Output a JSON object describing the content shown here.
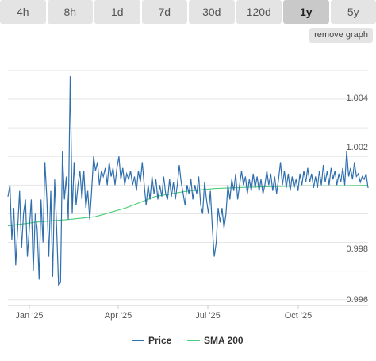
{
  "toolbar": {
    "ranges": [
      "4h",
      "8h",
      "1d",
      "7d",
      "30d",
      "120d",
      "1y",
      "5y"
    ],
    "active_range": "1y",
    "remove_graph_label": "remove graph"
  },
  "colors": {
    "price": "#2f6fae",
    "sma": "#4fcf7a",
    "grid": "#e6e6e6",
    "axis": "#cccccc"
  },
  "chart_data": {
    "type": "line",
    "title": "",
    "xlabel": "",
    "ylabel": "",
    "x_ticks": [
      "Jan '25",
      "Apr '25",
      "Jul '25",
      "Oct '25"
    ],
    "y_ticks": [
      "1.004",
      "1.002",
      "0.998",
      "0.996"
    ],
    "ylim": [
      0.9958,
      1.0048
    ],
    "x_range": [
      "2024-12-15",
      "2025-12-20"
    ],
    "grid": true,
    "legend_position": "bottom-center",
    "series": [
      {
        "name": "Price",
        "color": "#2f6fae",
        "points": [
          [
            "2024-12-15",
            0.9996
          ],
          [
            "2024-12-17",
            1.0
          ],
          [
            "2024-12-19",
            0.9981
          ],
          [
            "2024-12-21",
            0.9992
          ],
          [
            "2024-12-23",
            0.9972
          ],
          [
            "2024-12-25",
            0.9985
          ],
          [
            "2024-12-27",
            0.9998
          ],
          [
            "2024-12-29",
            0.9978
          ],
          [
            "2024-12-31",
            0.999
          ],
          [
            "2025-01-02",
            0.9995
          ],
          [
            "2025-01-04",
            0.9975
          ],
          [
            "2025-01-06",
            0.9985
          ],
          [
            "2025-01-08",
            0.9995
          ],
          [
            "2025-01-10",
            0.997
          ],
          [
            "2025-01-12",
            0.999
          ],
          [
            "2025-01-14",
            0.9985
          ],
          [
            "2025-01-16",
            0.9967
          ],
          [
            "2025-01-18",
            0.9995
          ],
          [
            "2025-01-20",
            0.998
          ],
          [
            "2025-01-22",
            1.0008
          ],
          [
            "2025-01-24",
            0.9995
          ],
          [
            "2025-01-26",
            0.9975
          ],
          [
            "2025-01-28",
            0.9998
          ],
          [
            "2025-01-30",
            0.9968
          ],
          [
            "2025-02-01",
            1.0002
          ],
          [
            "2025-02-03",
            0.9985
          ],
          [
            "2025-02-05",
            0.9965
          ],
          [
            "2025-02-07",
            0.9966
          ],
          [
            "2025-02-09",
            1.0012
          ],
          [
            "2025-02-11",
            0.9995
          ],
          [
            "2025-02-13",
            1.0003
          ],
          [
            "2025-02-15",
            0.9988
          ],
          [
            "2025-02-17",
            1.0038
          ],
          [
            "2025-02-19",
            0.999
          ],
          [
            "2025-02-21",
            1.0008
          ],
          [
            "2025-02-23",
            0.9993
          ],
          [
            "2025-02-25",
            1.0
          ],
          [
            "2025-02-27",
            1.0005
          ],
          [
            "2025-03-01",
            0.9995
          ],
          [
            "2025-03-03",
            1.0005
          ],
          [
            "2025-03-05",
            0.9992
          ],
          [
            "2025-03-07",
            0.9998
          ],
          [
            "2025-03-09",
            0.9988
          ],
          [
            "2025-03-11",
            0.9998
          ],
          [
            "2025-03-13",
            1.001
          ],
          [
            "2025-03-15",
            1.0005
          ],
          [
            "2025-03-17",
            1.0008
          ],
          [
            "2025-03-19",
            1.0
          ],
          [
            "2025-03-21",
            1.0005
          ],
          [
            "2025-03-23",
            1.0003
          ],
          [
            "2025-03-25",
            1.0006
          ],
          [
            "2025-03-27",
            1.0
          ],
          [
            "2025-03-29",
            1.0008
          ],
          [
            "2025-03-31",
            1.0003
          ],
          [
            "2025-04-02",
            1.0006
          ],
          [
            "2025-04-04",
            1.0
          ],
          [
            "2025-04-06",
            1.0006
          ],
          [
            "2025-04-08",
            1.001
          ],
          [
            "2025-04-10",
            1.0002
          ],
          [
            "2025-04-12",
            1.0006
          ],
          [
            "2025-04-14",
            1.0
          ],
          [
            "2025-04-16",
            1.0004
          ],
          [
            "2025-04-18",
            1.0002
          ],
          [
            "2025-04-20",
            1.0005
          ],
          [
            "2025-04-22",
            1.0
          ],
          [
            "2025-04-24",
            1.0003
          ],
          [
            "2025-04-26",
            0.9998
          ],
          [
            "2025-04-28",
            1.0005
          ],
          [
            "2025-04-30",
            1.0001
          ],
          [
            "2025-05-02",
            1.0008
          ],
          [
            "2025-05-04",
            1.0
          ],
          [
            "2025-05-06",
            0.9993
          ],
          [
            "2025-05-08",
            1.0
          ],
          [
            "2025-05-10",
            0.9995
          ],
          [
            "2025-05-12",
            1.0003
          ],
          [
            "2025-05-14",
            0.9997
          ],
          [
            "2025-05-16",
            1.0002
          ],
          [
            "2025-05-18",
            0.9995
          ],
          [
            "2025-05-20",
            1.0
          ],
          [
            "2025-05-22",
            0.9996
          ],
          [
            "2025-05-24",
            1.0003
          ],
          [
            "2025-05-26",
            0.9997
          ],
          [
            "2025-05-28",
            0.9995
          ],
          [
            "2025-05-30",
            1.0002
          ],
          [
            "2025-06-01",
            0.9996
          ],
          [
            "2025-06-03",
            1.0001
          ],
          [
            "2025-06-05",
            0.9995
          ],
          [
            "2025-06-07",
            1.0
          ],
          [
            "2025-06-09",
            1.0007
          ],
          [
            "2025-06-11",
            1.0001
          ],
          [
            "2025-06-13",
            0.9997
          ],
          [
            "2025-06-15",
            0.9993
          ],
          [
            "2025-06-17",
            1.0
          ],
          [
            "2025-06-19",
            0.9997
          ],
          [
            "2025-06-21",
            1.0002
          ],
          [
            "2025-06-23",
            0.9995
          ],
          [
            "2025-06-25",
            1.0
          ],
          [
            "2025-06-27",
            0.9997
          ],
          [
            "2025-06-29",
            1.0003
          ],
          [
            "2025-07-01",
            0.9993
          ],
          [
            "2025-07-03",
            0.999
          ],
          [
            "2025-07-05",
            1.0001
          ],
          [
            "2025-07-07",
            0.9995
          ],
          [
            "2025-07-09",
            0.999
          ],
          [
            "2025-07-11",
            0.9998
          ],
          [
            "2025-07-13",
            0.9985
          ],
          [
            "2025-07-15",
            0.9975
          ],
          [
            "2025-07-17",
            0.998
          ],
          [
            "2025-07-19",
            0.9992
          ],
          [
            "2025-07-21",
            0.9987
          ],
          [
            "2025-07-23",
            0.9992
          ],
          [
            "2025-07-25",
            0.9985
          ],
          [
            "2025-07-27",
            0.999
          ],
          [
            "2025-07-29",
            1.0
          ],
          [
            "2025-07-31",
            0.9995
          ],
          [
            "2025-08-02",
            1.0002
          ],
          [
            "2025-08-04",
            0.9998
          ],
          [
            "2025-08-06",
            1.0004
          ],
          [
            "2025-08-08",
            0.9995
          ],
          [
            "2025-08-10",
            1.0
          ],
          [
            "2025-08-12",
            1.0005
          ],
          [
            "2025-08-14",
            1.0
          ],
          [
            "2025-08-16",
            1.0003
          ],
          [
            "2025-08-18",
            0.9997
          ],
          [
            "2025-08-20",
            1.0002
          ],
          [
            "2025-08-22",
            0.9998
          ],
          [
            "2025-08-24",
            1.0004
          ],
          [
            "2025-08-26",
            0.9999
          ],
          [
            "2025-08-28",
            1.0003
          ],
          [
            "2025-08-30",
            0.9998
          ],
          [
            "2025-09-01",
            1.0002
          ],
          [
            "2025-09-03",
            0.9997
          ],
          [
            "2025-09-05",
            1.0
          ],
          [
            "2025-09-07",
            1.0005
          ],
          [
            "2025-09-09",
            1.0
          ],
          [
            "2025-09-11",
            1.0004
          ],
          [
            "2025-09-13",
            0.9998
          ],
          [
            "2025-09-15",
            1.0003
          ],
          [
            "2025-09-17",
            0.9997
          ],
          [
            "2025-09-19",
            1.0002
          ],
          [
            "2025-09-21",
            1.0008
          ],
          [
            "2025-09-23",
            1.0
          ],
          [
            "2025-09-25",
            1.0005
          ],
          [
            "2025-09-27",
            0.9999
          ],
          [
            "2025-09-29",
            1.0004
          ],
          [
            "2025-10-01",
            0.9998
          ],
          [
            "2025-10-03",
            1.0003
          ],
          [
            "2025-10-05",
            0.9999
          ],
          [
            "2025-10-07",
            1.0002
          ],
          [
            "2025-10-09",
            0.9998
          ],
          [
            "2025-10-11",
            1.0004
          ],
          [
            "2025-10-13",
            1.0
          ],
          [
            "2025-10-15",
            1.0005
          ],
          [
            "2025-10-17",
            1.0001
          ],
          [
            "2025-10-19",
            1.0006
          ],
          [
            "2025-10-21",
            1.0001
          ],
          [
            "2025-10-23",
            1.0004
          ],
          [
            "2025-10-25",
            0.9999
          ],
          [
            "2025-10-27",
            1.0003
          ],
          [
            "2025-10-29",
            0.9999
          ],
          [
            "2025-10-31",
            1.0005
          ],
          [
            "2025-11-02",
            1.0
          ],
          [
            "2025-11-04",
            1.0007
          ],
          [
            "2025-11-06",
            1.0001
          ],
          [
            "2025-11-08",
            1.0005
          ],
          [
            "2025-11-10",
            1.0
          ],
          [
            "2025-11-12",
            1.0006
          ],
          [
            "2025-11-14",
            1.0002
          ],
          [
            "2025-11-16",
            1.0005
          ],
          [
            "2025-11-18",
            1.0
          ],
          [
            "2025-11-20",
            1.0004
          ],
          [
            "2025-11-22",
            1.0001
          ],
          [
            "2025-11-24",
            1.0006
          ],
          [
            "2025-11-26",
            1.0
          ],
          [
            "2025-11-28",
            1.0012
          ],
          [
            "2025-11-30",
            1.0003
          ],
          [
            "2025-12-02",
            1.0006
          ],
          [
            "2025-12-04",
            1.0002
          ],
          [
            "2025-12-06",
            1.0008
          ],
          [
            "2025-12-08",
            1.0003
          ],
          [
            "2025-12-10",
            1.0004
          ],
          [
            "2025-12-12",
            1.0001
          ],
          [
            "2025-12-14",
            1.0003
          ],
          [
            "2025-12-16",
            1.0002
          ],
          [
            "2025-12-18",
            1.0004
          ],
          [
            "2025-12-20",
            0.9999
          ]
        ]
      },
      {
        "name": "SMA 200",
        "color": "#4fcf7a",
        "points": [
          [
            "2024-12-15",
            0.99858
          ],
          [
            "2025-01-15",
            0.99872
          ],
          [
            "2025-02-15",
            0.9988
          ],
          [
            "2025-03-15",
            0.9989
          ],
          [
            "2025-04-15",
            0.9992
          ],
          [
            "2025-05-15",
            0.9996
          ],
          [
            "2025-06-15",
            0.99978
          ],
          [
            "2025-07-15",
            0.99988
          ],
          [
            "2025-08-15",
            0.99992
          ],
          [
            "2025-09-15",
            0.99995
          ],
          [
            "2025-10-15",
            0.99997
          ],
          [
            "2025-11-15",
            0.99997
          ],
          [
            "2025-12-20",
            0.99999
          ]
        ]
      }
    ]
  }
}
